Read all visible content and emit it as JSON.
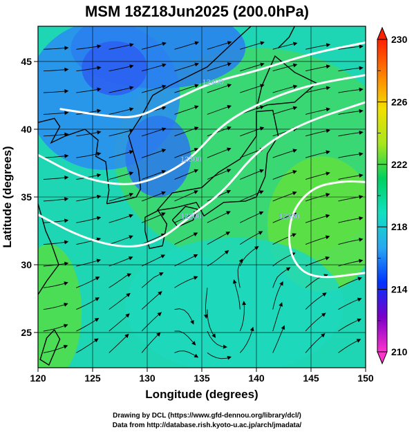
{
  "title": "MSM 18Z18Jun2025 (200.0hPa)",
  "chart_data": {
    "type": "heatmap",
    "xlabel": "Longitude (degrees)",
    "ylabel": "Latitude  (degrees)",
    "xlim": [
      120,
      150
    ],
    "ylim": [
      22.4,
      47.6
    ],
    "x_ticks": [
      "120",
      "125",
      "130",
      "135",
      "140",
      "145",
      "150"
    ],
    "y_ticks": [
      "25",
      "30",
      "35",
      "40",
      "45"
    ],
    "colorbar": {
      "min": 210,
      "max": 230,
      "ticks": [
        "210",
        "214",
        "218",
        "222",
        "226",
        "230"
      ],
      "colors": [
        "#ff33cc",
        "#7a00c8",
        "#0033ff",
        "#2aa8f0",
        "#11e0c0",
        "#00d060",
        "#a8e61e",
        "#f2e000",
        "#ff8000",
        "#ff2000"
      ]
    },
    "contours": [
      {
        "label": "12400",
        "points": [
          [
            122,
            41.5
          ],
          [
            126,
            41.0
          ],
          [
            129,
            40.8
          ],
          [
            132,
            42.0
          ],
          [
            136,
            43.5
          ],
          [
            140,
            44.3
          ],
          [
            145,
            45.6
          ],
          [
            150,
            46.4
          ]
        ]
      },
      {
        "label": "12300",
        "points": [
          [
            120,
            38.1
          ],
          [
            124,
            36.4
          ],
          [
            128,
            35.8
          ],
          [
            131,
            36.4
          ],
          [
            134,
            37.8
          ],
          [
            137,
            40.5
          ],
          [
            141,
            42.2
          ],
          [
            145,
            43.3
          ],
          [
            150,
            44.0
          ]
        ]
      },
      {
        "label": "12200",
        "points": [
          [
            120,
            33.7
          ],
          [
            124,
            32.0
          ],
          [
            128,
            31.2
          ],
          [
            131,
            31.7
          ],
          [
            134,
            33.6
          ],
          [
            137,
            35.4
          ],
          [
            140,
            38.4
          ],
          [
            144,
            40.4
          ],
          [
            150,
            42.0
          ]
        ]
      },
      {
        "label": "12300",
        "points": [
          [
            150,
            29.4
          ],
          [
            145,
            28.9
          ],
          [
            143,
            30.6
          ],
          [
            143,
            33.6
          ],
          [
            145,
            35.7
          ],
          [
            148,
            36.2
          ],
          [
            150,
            36.1
          ]
        ]
      }
    ]
  },
  "colors": {
    "contour": "#ffffff",
    "streamline": "#000000",
    "coast": "#000000",
    "grid": "#000000"
  },
  "credits": {
    "line1": "Drawing by DCL (https://www.gfd-dennou.org/library/dcl/)",
    "line2": "Data from http://database.rish.kyoto-u.ac.jp/arch/jmadata/"
  }
}
